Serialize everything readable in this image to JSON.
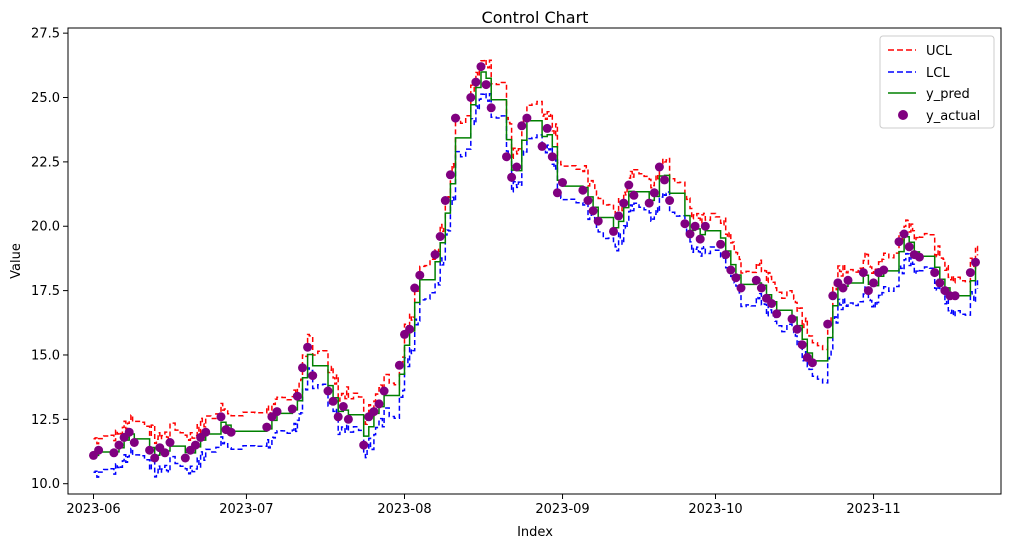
{
  "chart_data": {
    "type": "line",
    "title": "Control Chart",
    "xlabel": "Index",
    "ylabel": "Value",
    "x_range": [
      "2023-05-27",
      "2023-11-26"
    ],
    "ylim": [
      9.6,
      27.7
    ],
    "x_ticks": [
      {
        "date": "2023-06-01",
        "label": "2023-06"
      },
      {
        "date": "2023-07-01",
        "label": "2023-07"
      },
      {
        "date": "2023-08-01",
        "label": "2023-08"
      },
      {
        "date": "2023-09-01",
        "label": "2023-09"
      },
      {
        "date": "2023-10-01",
        "label": "2023-10"
      },
      {
        "date": "2023-11-01",
        "label": "2023-11"
      }
    ],
    "y_ticks": [
      {
        "value": 10.0,
        "label": "10.0"
      },
      {
        "value": 12.5,
        "label": "12.5"
      },
      {
        "value": 15.0,
        "label": "15.0"
      },
      {
        "value": 17.5,
        "label": "17.5"
      },
      {
        "value": 20.0,
        "label": "20.0"
      },
      {
        "value": 22.5,
        "label": "22.5"
      },
      {
        "value": 25.0,
        "label": "25.0"
      },
      {
        "value": 27.5,
        "label": "27.5"
      }
    ],
    "grid": false,
    "legend_position": "top-right",
    "series": [
      {
        "name": "UCL",
        "style": "dashed",
        "color": "#ff0000"
      },
      {
        "name": "LCL",
        "style": "dashed",
        "color": "#0000ff"
      },
      {
        "name": "y_pred",
        "style": "solid",
        "color": "#008000"
      },
      {
        "name": "y_actual",
        "style": "scatter",
        "color": "#800080"
      }
    ],
    "y_actual": [
      [
        "2023-06-01",
        11.1
      ],
      [
        "2023-06-02",
        11.3
      ],
      [
        "2023-06-05",
        11.2
      ],
      [
        "2023-06-06",
        11.5
      ],
      [
        "2023-06-07",
        11.8
      ],
      [
        "2023-06-08",
        12.0
      ],
      [
        "2023-06-09",
        11.6
      ],
      [
        "2023-06-12",
        11.3
      ],
      [
        "2023-06-13",
        11.0
      ],
      [
        "2023-06-14",
        11.4
      ],
      [
        "2023-06-15",
        11.2
      ],
      [
        "2023-06-16",
        11.6
      ],
      [
        "2023-06-19",
        11.0
      ],
      [
        "2023-06-20",
        11.3
      ],
      [
        "2023-06-21",
        11.5
      ],
      [
        "2023-06-22",
        11.8
      ],
      [
        "2023-06-23",
        12.0
      ],
      [
        "2023-06-26",
        12.6
      ],
      [
        "2023-06-27",
        12.1
      ],
      [
        "2023-06-28",
        12.0
      ],
      [
        "2023-07-05",
        12.2
      ],
      [
        "2023-07-06",
        12.6
      ],
      [
        "2023-07-07",
        12.8
      ],
      [
        "2023-07-10",
        12.9
      ],
      [
        "2023-07-11",
        13.4
      ],
      [
        "2023-07-12",
        14.5
      ],
      [
        "2023-07-13",
        15.3
      ],
      [
        "2023-07-14",
        14.2
      ],
      [
        "2023-07-17",
        13.6
      ],
      [
        "2023-07-18",
        13.2
      ],
      [
        "2023-07-19",
        12.6
      ],
      [
        "2023-07-20",
        13.0
      ],
      [
        "2023-07-21",
        12.5
      ],
      [
        "2023-07-24",
        11.5
      ],
      [
        "2023-07-25",
        12.6
      ],
      [
        "2023-07-26",
        12.8
      ],
      [
        "2023-07-27",
        13.1
      ],
      [
        "2023-07-28",
        13.6
      ],
      [
        "2023-07-31",
        14.6
      ],
      [
        "2023-08-01",
        15.8
      ],
      [
        "2023-08-02",
        16.0
      ],
      [
        "2023-08-03",
        17.6
      ],
      [
        "2023-08-04",
        18.1
      ],
      [
        "2023-08-07",
        18.9
      ],
      [
        "2023-08-08",
        19.6
      ],
      [
        "2023-08-09",
        21.0
      ],
      [
        "2023-08-10",
        22.0
      ],
      [
        "2023-08-11",
        24.2
      ],
      [
        "2023-08-14",
        25.0
      ],
      [
        "2023-08-15",
        25.6
      ],
      [
        "2023-08-16",
        26.2
      ],
      [
        "2023-08-17",
        25.5
      ],
      [
        "2023-08-18",
        24.6
      ],
      [
        "2023-08-21",
        22.7
      ],
      [
        "2023-08-22",
        21.9
      ],
      [
        "2023-08-23",
        22.3
      ],
      [
        "2023-08-24",
        23.9
      ],
      [
        "2023-08-25",
        24.2
      ],
      [
        "2023-08-28",
        23.1
      ],
      [
        "2023-08-29",
        23.8
      ],
      [
        "2023-08-30",
        22.7
      ],
      [
        "2023-08-31",
        21.3
      ],
      [
        "2023-09-01",
        21.7
      ],
      [
        "2023-09-05",
        21.4
      ],
      [
        "2023-09-06",
        21.0
      ],
      [
        "2023-09-07",
        20.6
      ],
      [
        "2023-09-08",
        20.2
      ],
      [
        "2023-09-11",
        19.8
      ],
      [
        "2023-09-12",
        20.4
      ],
      [
        "2023-09-13",
        20.9
      ],
      [
        "2023-09-14",
        21.6
      ],
      [
        "2023-09-15",
        21.2
      ],
      [
        "2023-09-18",
        20.9
      ],
      [
        "2023-09-19",
        21.3
      ],
      [
        "2023-09-20",
        22.3
      ],
      [
        "2023-09-21",
        21.8
      ],
      [
        "2023-09-22",
        21.0
      ],
      [
        "2023-09-25",
        20.1
      ],
      [
        "2023-09-26",
        19.7
      ],
      [
        "2023-09-27",
        20.0
      ],
      [
        "2023-09-28",
        19.5
      ],
      [
        "2023-09-29",
        20.0
      ],
      [
        "2023-10-02",
        19.3
      ],
      [
        "2023-10-03",
        18.9
      ],
      [
        "2023-10-04",
        18.3
      ],
      [
        "2023-10-05",
        18.0
      ],
      [
        "2023-10-06",
        17.6
      ],
      [
        "2023-10-09",
        17.9
      ],
      [
        "2023-10-10",
        17.6
      ],
      [
        "2023-10-11",
        17.2
      ],
      [
        "2023-10-12",
        17.0
      ],
      [
        "2023-10-13",
        16.6
      ],
      [
        "2023-10-16",
        16.4
      ],
      [
        "2023-10-17",
        16.0
      ],
      [
        "2023-10-18",
        15.4
      ],
      [
        "2023-10-19",
        14.9
      ],
      [
        "2023-10-20",
        14.7
      ],
      [
        "2023-10-23",
        16.2
      ],
      [
        "2023-10-24",
        17.3
      ],
      [
        "2023-10-25",
        17.8
      ],
      [
        "2023-10-26",
        17.6
      ],
      [
        "2023-10-27",
        17.9
      ],
      [
        "2023-10-30",
        18.2
      ],
      [
        "2023-10-31",
        17.5
      ],
      [
        "2023-11-01",
        17.8
      ],
      [
        "2023-11-02",
        18.2
      ],
      [
        "2023-11-03",
        18.3
      ],
      [
        "2023-11-06",
        19.4
      ],
      [
        "2023-11-07",
        19.7
      ],
      [
        "2023-11-08",
        19.2
      ],
      [
        "2023-11-09",
        18.9
      ],
      [
        "2023-11-10",
        18.8
      ],
      [
        "2023-11-13",
        18.2
      ],
      [
        "2023-11-14",
        17.8
      ],
      [
        "2023-11-15",
        17.5
      ],
      [
        "2023-11-16",
        17.3
      ],
      [
        "2023-11-17",
        17.3
      ],
      [
        "2023-11-20",
        18.2
      ],
      [
        "2023-11-21",
        18.6
      ]
    ]
  }
}
